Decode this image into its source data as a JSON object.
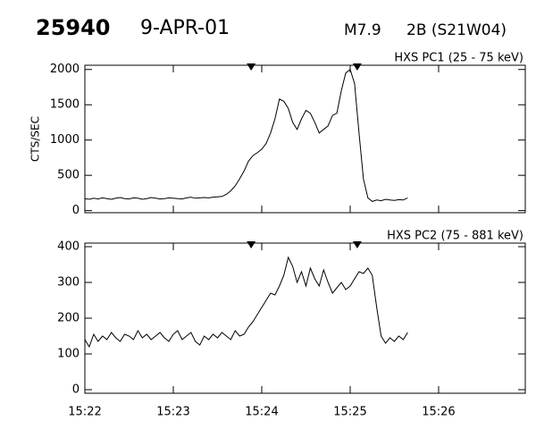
{
  "header": {
    "id": "25940",
    "date": "9-APR-01",
    "class": "M7.9",
    "flare": "2B (S21W04)"
  },
  "chart_data": [
    {
      "type": "line",
      "title": "HXS PC1 (25 - 75 keV)",
      "y_label": "CTS/SEC",
      "color": "#000000",
      "x": [
        0,
        0.05,
        0.1,
        0.15,
        0.2,
        0.25,
        0.3,
        0.35,
        0.4,
        0.45,
        0.5,
        0.55,
        0.6,
        0.65,
        0.7,
        0.75,
        0.8,
        0.85,
        0.9,
        0.95,
        1,
        1.05,
        1.1,
        1.15,
        1.2,
        1.25,
        1.3,
        1.35,
        1.4,
        1.45,
        1.5,
        1.55,
        1.6,
        1.65,
        1.7,
        1.75,
        1.8,
        1.85,
        1.9,
        1.95,
        2,
        2.05,
        2.1,
        2.15,
        2.2,
        2.25,
        2.3,
        2.35,
        2.4,
        2.45,
        2.5,
        2.55,
        2.6,
        2.65,
        2.7,
        2.75,
        2.8,
        2.85,
        2.9,
        2.95,
        3,
        3.05,
        3.1,
        3.15,
        3.2,
        3.25,
        3.3,
        3.35,
        3.4,
        3.45,
        3.5,
        3.55,
        3.6,
        3.65
      ],
      "values": [
        170,
        160,
        175,
        165,
        180,
        170,
        160,
        175,
        185,
        170,
        165,
        180,
        175,
        160,
        170,
        185,
        175,
        165,
        170,
        180,
        175,
        170,
        165,
        180,
        190,
        175,
        180,
        185,
        180,
        190,
        195,
        200,
        230,
        280,
        350,
        450,
        560,
        700,
        780,
        820,
        870,
        950,
        1100,
        1300,
        1580,
        1550,
        1450,
        1250,
        1150,
        1300,
        1420,
        1380,
        1250,
        1100,
        1150,
        1200,
        1350,
        1380,
        1700,
        1950,
        2000,
        1800,
        1100,
        450,
        180,
        130,
        150,
        140,
        160,
        150,
        145,
        155,
        150,
        180
      ],
      "markers": [
        1.88,
        3.08
      ],
      "xlim": [
        0,
        4.98
      ],
      "xticks": [
        0,
        1,
        2,
        3,
        4
      ],
      "ylim": [
        -30,
        2060
      ],
      "yticks": [
        0,
        500,
        1000,
        1500,
        2000
      ]
    },
    {
      "type": "line",
      "title": "HXS PC2 (75 - 881 keV)",
      "color": "#000000",
      "x": [
        0,
        0.05,
        0.1,
        0.15,
        0.2,
        0.25,
        0.3,
        0.35,
        0.4,
        0.45,
        0.5,
        0.55,
        0.6,
        0.65,
        0.7,
        0.75,
        0.8,
        0.85,
        0.9,
        0.95,
        1,
        1.05,
        1.1,
        1.15,
        1.2,
        1.25,
        1.3,
        1.35,
        1.4,
        1.45,
        1.5,
        1.55,
        1.6,
        1.65,
        1.7,
        1.75,
        1.8,
        1.85,
        1.9,
        1.95,
        2,
        2.05,
        2.1,
        2.15,
        2.2,
        2.25,
        2.3,
        2.35,
        2.4,
        2.45,
        2.5,
        2.55,
        2.6,
        2.65,
        2.7,
        2.75,
        2.8,
        2.85,
        2.9,
        2.95,
        3,
        3.05,
        3.1,
        3.15,
        3.2,
        3.25,
        3.3,
        3.35,
        3.4,
        3.45,
        3.5,
        3.55,
        3.6,
        3.65
      ],
      "values": [
        140,
        120,
        155,
        135,
        150,
        140,
        160,
        145,
        135,
        155,
        150,
        140,
        165,
        145,
        155,
        140,
        150,
        160,
        145,
        135,
        155,
        165,
        140,
        150,
        160,
        135,
        125,
        150,
        140,
        155,
        145,
        160,
        150,
        140,
        165,
        150,
        155,
        175,
        190,
        210,
        230,
        250,
        270,
        265,
        290,
        320,
        370,
        345,
        300,
        330,
        290,
        340,
        310,
        290,
        335,
        300,
        270,
        285,
        300,
        280,
        290,
        310,
        330,
        325,
        340,
        320,
        230,
        150,
        130,
        145,
        135,
        150,
        140,
        160
      ],
      "markers": [
        1.88,
        3.08
      ],
      "xlim": [
        0,
        4.98
      ],
      "xticks": [
        {
          "value": 0,
          "label": "15:22"
        },
        {
          "value": 1,
          "label": "15:23"
        },
        {
          "value": 2,
          "label": "15:24"
        },
        {
          "value": 3,
          "label": "15:25"
        },
        {
          "value": 4,
          "label": "15:26"
        }
      ],
      "ylim": [
        -10,
        410
      ],
      "yticks": [
        0,
        100,
        200,
        300,
        400
      ]
    }
  ]
}
